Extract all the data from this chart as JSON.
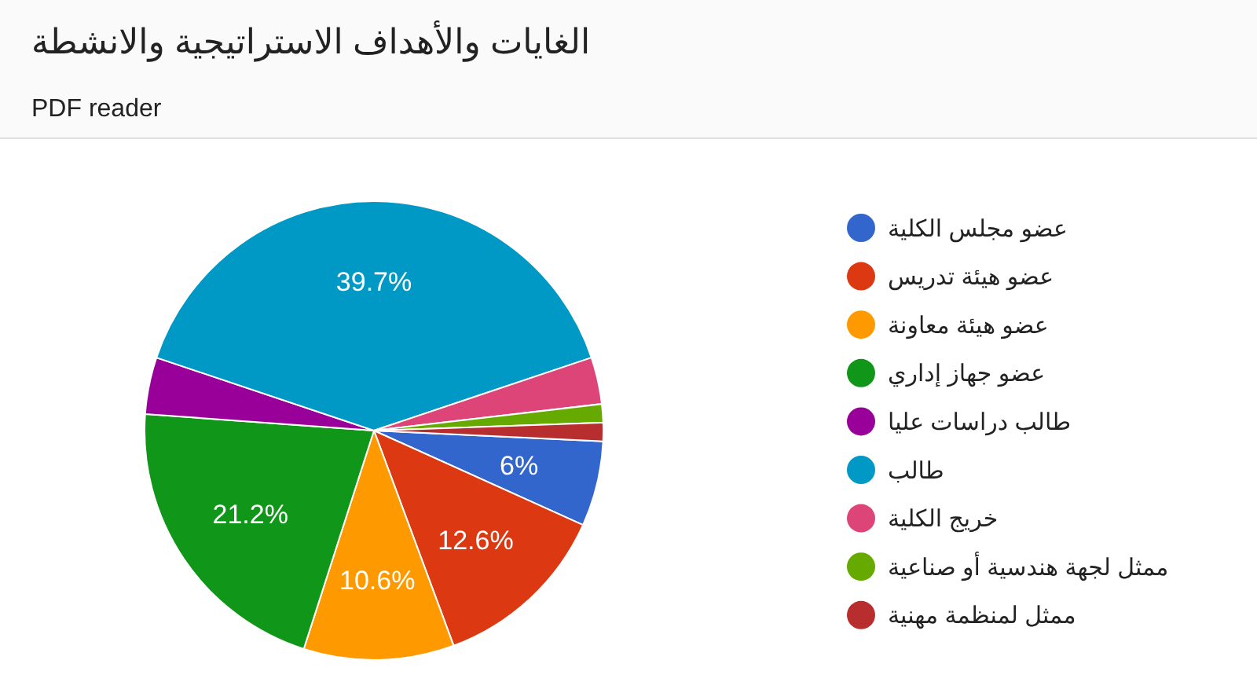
{
  "chart_data": {
    "type": "pie",
    "title": "الغايات والأهداف الاستراتيجية والانشطة",
    "subtitle": "PDF reader",
    "categories": [
      "عضو مجلس الكلية",
      "عضو هيئة تدريس",
      "عضو هيئة معاونة",
      "عضو جهاز إداري",
      "طالب دراسات عليا",
      "طالب",
      "خريج الكلية",
      "ممثل لجهة هندسية أو صناعية",
      "ممثل لمنظمة مهنية"
    ],
    "values": [
      6,
      12.6,
      10.6,
      21.2,
      4,
      39.7,
      3.3,
      1.3,
      1.3
    ],
    "colors": [
      "#3366cc",
      "#dc3912",
      "#ff9900",
      "#109618",
      "#990099",
      "#0099c6",
      "#dd4477",
      "#66aa00",
      "#b82e2e"
    ],
    "value_labels": [
      "6%",
      "12.6%",
      "10.6%",
      "21.2%",
      null,
      "39.7%",
      null,
      null,
      null
    ],
    "legend": "right"
  }
}
